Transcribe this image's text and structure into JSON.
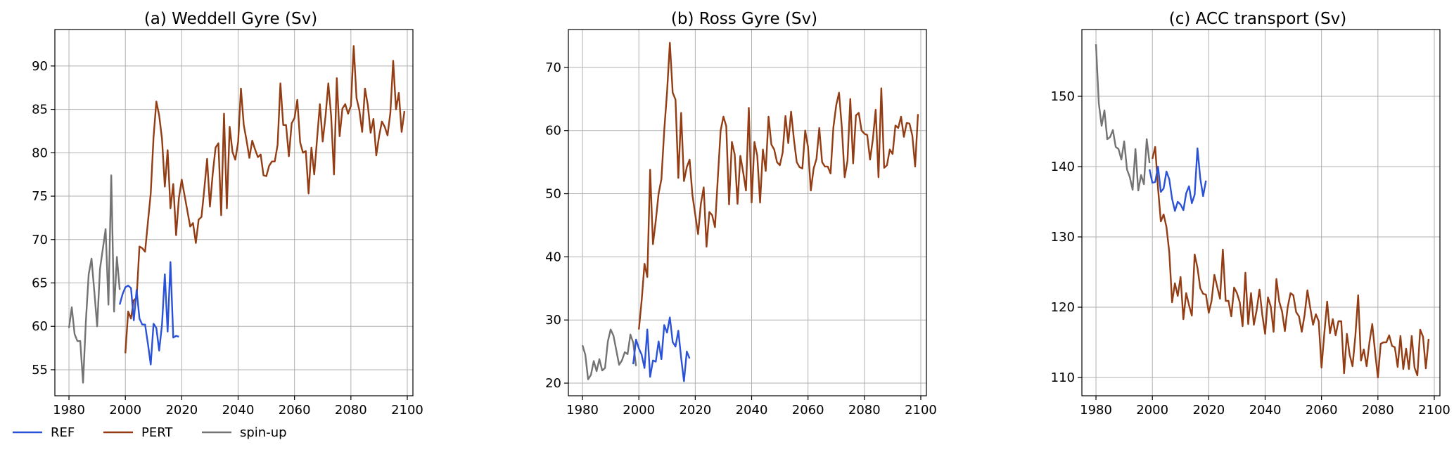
{
  "colors": {
    "REF": "#2a52d8",
    "PERT": "#943d14",
    "spin-up": "#737373"
  },
  "legend": {
    "placement": "bottom-left",
    "entries": [
      "REF",
      "PERT",
      "spin-up"
    ]
  },
  "chart_data": [
    {
      "type": "line",
      "title": "(a) Weddell Gyre (Sv)",
      "xlim": [
        1975,
        2102
      ],
      "ylim": [
        52,
        94.2
      ],
      "xticks": [
        1980,
        2000,
        2020,
        2040,
        2060,
        2080,
        2100
      ],
      "yticks": [
        55,
        60,
        65,
        70,
        75,
        80,
        85,
        90
      ],
      "grid": true,
      "series": [
        {
          "name": "spin-up",
          "x0": 1980,
          "values": [
            59.8,
            62.2,
            59.1,
            58.3,
            58.3,
            53.5,
            60.6,
            66.0,
            67.8,
            64.0,
            60.0,
            66.6,
            68.9,
            71.2,
            62.5,
            77.4,
            61.7,
            68.0,
            64.2
          ]
        },
        {
          "name": "REF",
          "x0": 1998,
          "values": [
            62.5,
            63.7,
            64.5,
            64.7,
            64.4,
            60.7,
            64.2,
            60.9,
            60.2,
            60.2,
            58.0,
            55.6,
            60.3,
            59.8,
            57.2,
            60.2,
            66.0,
            59.4,
            67.4,
            58.7,
            58.9,
            58.8
          ]
        },
        {
          "name": "PERT",
          "x0": 2000,
          "values": [
            56.9,
            61.7,
            60.9,
            63.0,
            63.3,
            69.2,
            69.0,
            68.6,
            72.0,
            75.3,
            81.8,
            85.9,
            84.3,
            81.6,
            76.1,
            80.3,
            73.6,
            76.4,
            70.5,
            74.8,
            76.9,
            75.1,
            73.3,
            71.5,
            71.9,
            69.6,
            72.3,
            72.6,
            75.8,
            79.3,
            73.8,
            77.6,
            80.6,
            81.1,
            72.8,
            84.5,
            73.6,
            83.0,
            80.1,
            79.2,
            81.2,
            87.4,
            83.2,
            81.4,
            79.4,
            81.4,
            80.4,
            79.5,
            79.8,
            77.4,
            77.3,
            78.5,
            79.0,
            79.0,
            80.9,
            88.0,
            83.2,
            83.2,
            79.6,
            83.4,
            84.0,
            86.1,
            81.2,
            80.0,
            80.2,
            75.3,
            80.6,
            77.5,
            81.6,
            85.6,
            81.3,
            84.2,
            88.0,
            84.2,
            77.5,
            88.6,
            81.9,
            85.1,
            85.6,
            84.5,
            85.4,
            92.3,
            86.3,
            84.9,
            82.4,
            87.4,
            85.5,
            82.3,
            83.9,
            79.7,
            81.9,
            83.6,
            83.0,
            82.0,
            84.6,
            90.6,
            85.0,
            86.9,
            82.4,
            84.8
          ]
        }
      ]
    },
    {
      "type": "line",
      "title": "(b) Ross Gyre (Sv)",
      "xlim": [
        1975,
        2102
      ],
      "ylim": [
        18,
        76
      ],
      "xticks": [
        1980,
        2000,
        2020,
        2040,
        2060,
        2080,
        2100
      ],
      "yticks": [
        20,
        30,
        40,
        50,
        60,
        70
      ],
      "grid": true,
      "series": [
        {
          "name": "spin-up",
          "x0": 1980,
          "values": [
            26.0,
            24.5,
            20.6,
            21.3,
            23.5,
            21.9,
            23.8,
            22.0,
            22.4,
            26.6,
            28.5,
            27.5,
            25.2,
            22.9,
            23.6,
            24.9,
            24.6,
            27.7,
            26.4,
            22.7
          ]
        },
        {
          "name": "REF",
          "x0": 1998,
          "values": [
            23.0,
            26.9,
            25.5,
            24.5,
            22.4,
            28.5,
            21.0,
            23.6,
            23.4,
            26.6,
            23.8,
            29.2,
            28.0,
            30.4,
            26.5,
            25.8,
            28.3,
            24.0,
            20.3,
            25.0,
            23.9
          ]
        },
        {
          "name": "PERT",
          "x0": 2000,
          "values": [
            28.5,
            33.1,
            38.9,
            36.8,
            53.8,
            42.0,
            45.7,
            50.0,
            52.3,
            60.0,
            66.1,
            73.9,
            66.0,
            64.9,
            52.5,
            62.8,
            52.0,
            54.2,
            55.4,
            49.8,
            46.7,
            43.6,
            48.4,
            51.0,
            41.6,
            47.1,
            46.6,
            44.7,
            52.4,
            60.0,
            62.2,
            60.7,
            48.3,
            58.2,
            56.2,
            48.4,
            56.0,
            53.4,
            50.5,
            63.6,
            48.6,
            58.2,
            56.0,
            48.6,
            57.0,
            53.6,
            62.2,
            57.8,
            57.0,
            55.0,
            54.5,
            56.5,
            62.3,
            58.0,
            63.0,
            58.6,
            55.0,
            54.2,
            54.0,
            60.0,
            57.4,
            50.5,
            54.0,
            55.5,
            60.4,
            55.0,
            54.3,
            54.3,
            53.2,
            60.5,
            64.0,
            66.0,
            60.5,
            52.6,
            55.2,
            65.0,
            54.8,
            62.4,
            62.8,
            60.0,
            59.5,
            59.3,
            55.4,
            58.6,
            63.3,
            52.6,
            66.7,
            54.1,
            54.5,
            57.0,
            56.3,
            60.8,
            60.4,
            62.2,
            59.0,
            61.2,
            61.1,
            59.2,
            54.3,
            62.6
          ]
        }
      ]
    },
    {
      "type": "line",
      "title": "(c) ACC transport (Sv)",
      "xlim": [
        1975,
        2102
      ],
      "ylim": [
        107.4,
        159.5
      ],
      "xticks": [
        1980,
        2000,
        2020,
        2040,
        2060,
        2080,
        2100
      ],
      "yticks": [
        110,
        120,
        130,
        140,
        150
      ],
      "grid": true,
      "series": [
        {
          "name": "spin-up",
          "x0": 1980,
          "values": [
            157.4,
            149.0,
            145.8,
            148.0,
            143.9,
            144.2,
            145.2,
            142.8,
            142.5,
            141.0,
            143.6,
            139.6,
            138.5,
            136.7,
            142.5,
            136.6,
            138.8,
            137.5,
            143.9,
            140.5
          ]
        },
        {
          "name": "REF",
          "x0": 1999,
          "values": [
            139.6,
            137.7,
            137.8,
            140.0,
            136.4,
            136.9,
            139.3,
            138.2,
            135.4,
            133.7,
            135.0,
            134.6,
            133.8,
            136.2,
            137.2,
            134.8,
            136.0,
            142.6,
            138.3,
            135.8,
            138.0
          ]
        },
        {
          "name": "PERT",
          "x0": 2000,
          "values": [
            141.1,
            142.8,
            137.0,
            132.2,
            133.2,
            131.4,
            127.8,
            120.7,
            123.4,
            121.6,
            124.3,
            118.3,
            122.0,
            120.3,
            118.8,
            127.5,
            125.6,
            122.7,
            121.9,
            121.8,
            119.2,
            120.9,
            124.6,
            122.9,
            121.2,
            128.2,
            120.9,
            120.9,
            118.7,
            122.8,
            122.0,
            120.7,
            117.3,
            124.9,
            117.6,
            122.0,
            117.5,
            119.6,
            122.5,
            118.9,
            116.2,
            121.4,
            120.1,
            116.5,
            124.0,
            120.8,
            119.4,
            116.6,
            120.0,
            122.0,
            121.7,
            119.3,
            118.7,
            116.5,
            118.9,
            122.4,
            119.9,
            117.5,
            119.0,
            118.0,
            111.4,
            116.3,
            120.8,
            116.3,
            118.3,
            116.0,
            118.0,
            118.0,
            110.6,
            116.2,
            113.2,
            111.6,
            115.9,
            121.7,
            112.4,
            114.0,
            111.6,
            115.0,
            117.6,
            113.6,
            110.0,
            114.8,
            115.0,
            115.0,
            116.0,
            114.5,
            114.3,
            111.5,
            115.9,
            111.2,
            114.1,
            111.2,
            115.9,
            111.4,
            110.3,
            116.8,
            115.8,
            111.3,
            115.5
          ]
        }
      ]
    }
  ]
}
